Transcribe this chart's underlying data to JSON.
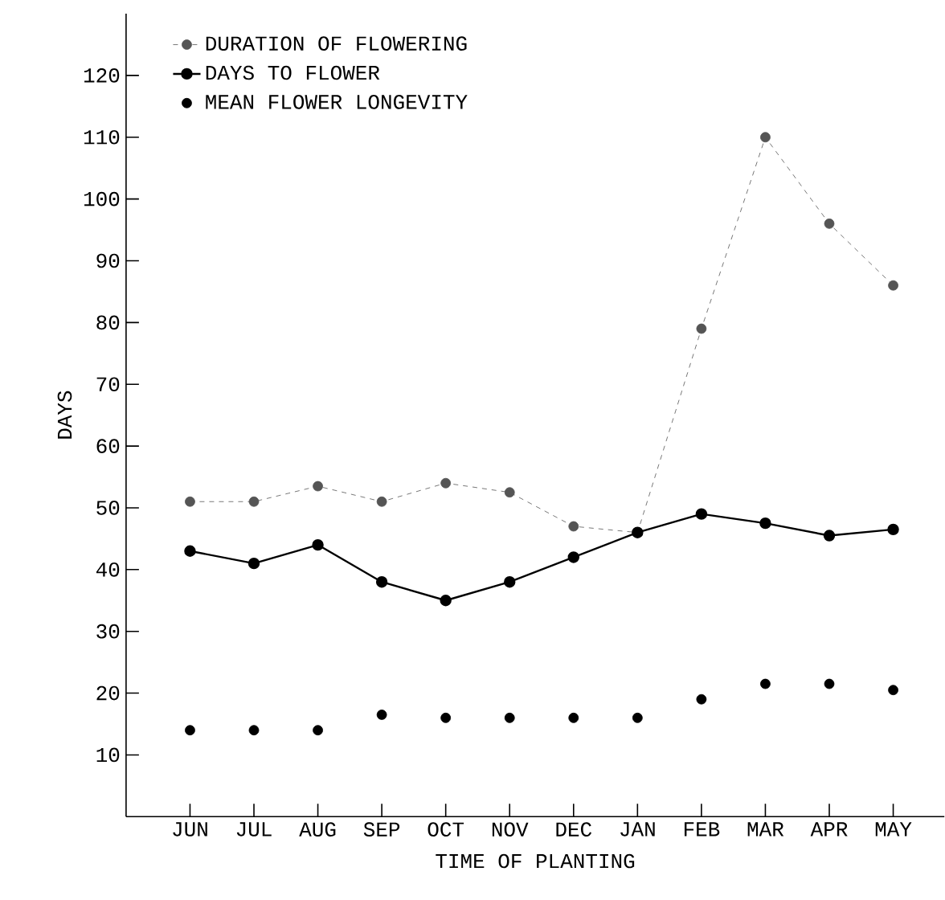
{
  "chart_data": {
    "type": "line",
    "xlabel": "TIME OF PLANTING",
    "ylabel": "DAYS",
    "categories": [
      "JUN",
      "JUL",
      "AUG",
      "SEP",
      "OCT",
      "NOV",
      "DEC",
      "JAN",
      "FEB",
      "MAR",
      "APR",
      "MAY"
    ],
    "series": [
      {
        "name": "DURATION OF FLOWERING",
        "line_style": "dashed",
        "color": "#555555",
        "values": [
          51,
          51,
          53.5,
          51,
          54,
          52.5,
          47,
          46,
          79,
          110,
          96,
          86
        ]
      },
      {
        "name": "DAYS TO FLOWER",
        "line_style": "solid",
        "color": "#000000",
        "values": [
          43,
          41,
          44,
          38,
          35,
          38,
          42,
          46,
          49,
          47.5,
          45.5,
          46.5
        ]
      },
      {
        "name": "MEAN FLOWER LONGEVITY",
        "type": "scatter",
        "color": "#000000",
        "values": [
          14,
          14,
          14,
          16.5,
          16,
          16,
          16,
          16,
          19,
          21.5,
          21.5,
          20.5
        ]
      }
    ],
    "marker": "circle",
    "ylim": [
      0,
      130
    ],
    "yticks": [
      10,
      20,
      30,
      40,
      50,
      60,
      70,
      80,
      90,
      100,
      110,
      120
    ],
    "legend": "top left"
  }
}
